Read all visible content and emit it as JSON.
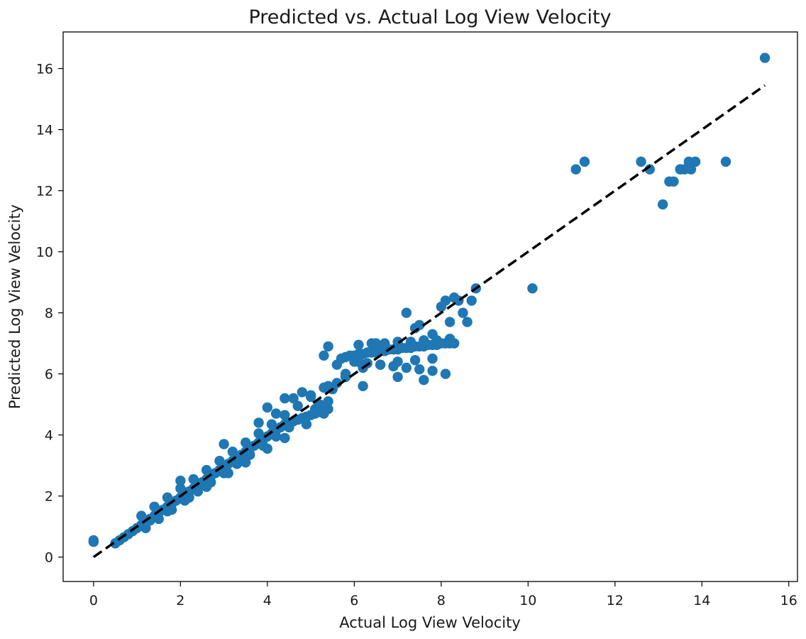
{
  "chart_data": {
    "type": "scatter",
    "title": "Predicted vs. Actual Log View Velocity",
    "xlabel": "Actual Log View Velocity",
    "ylabel": "Predicted Log View Velocity",
    "xlim": [
      -0.7,
      16.2
    ],
    "ylim": [
      -0.8,
      17.2
    ],
    "x_ticks": [
      "0",
      "2",
      "4",
      "6",
      "8",
      "10",
      "12",
      "14",
      "16"
    ],
    "y_ticks": [
      "0",
      "2",
      "4",
      "6",
      "8",
      "10",
      "12",
      "14",
      "16"
    ],
    "grid": false,
    "legend": "none",
    "point_color": "#1f77b4",
    "reference_line": {
      "style": "dashed",
      "color": "#000000",
      "x": [
        0,
        15.45
      ],
      "y": [
        0,
        15.45
      ]
    },
    "series": [
      {
        "x": [
          0.0,
          0.0,
          0.5,
          0.6,
          0.7,
          0.8,
          0.9,
          1.0,
          1.1,
          1.2,
          1.3,
          1.4,
          1.5,
          1.6,
          1.7,
          1.8,
          1.9,
          2.0,
          2.1,
          2.2,
          2.3,
          2.4,
          2.5,
          2.6,
          2.7,
          2.8,
          2.9,
          3.0,
          3.1,
          3.2,
          3.3,
          3.4,
          3.5,
          3.6,
          3.7,
          3.8,
          3.9,
          4.0,
          4.1,
          4.2,
          4.3,
          4.4,
          4.5,
          4.6,
          4.7,
          4.8,
          4.9,
          5.0,
          5.1,
          5.2,
          5.3,
          5.4,
          5.5,
          5.6,
          5.7,
          5.8,
          5.9,
          6.0,
          6.1,
          6.2,
          6.3,
          6.4,
          6.5,
          6.6,
          6.7,
          6.8,
          6.9,
          7.0,
          7.1,
          7.2,
          7.3,
          7.4,
          7.5,
          7.6,
          7.7,
          7.8,
          7.9,
          8.0,
          8.1,
          8.2,
          8.3,
          1.2,
          1.5,
          1.8,
          2.1,
          2.4,
          2.7,
          3.0,
          3.3,
          3.6,
          3.9,
          4.2,
          4.5,
          4.8,
          5.1,
          5.4,
          1.1,
          1.4,
          1.7,
          2.0,
          2.3,
          2.6,
          2.9,
          3.2,
          3.5,
          3.8,
          4.1,
          4.4,
          4.7,
          5.0,
          5.3,
          5.6,
          1.3,
          1.7,
          2.2,
          2.6,
          3.1,
          3.5,
          4.0,
          4.4,
          4.9,
          5.3,
          5.8,
          6.2,
          6.6,
          7.0,
          7.4,
          7.8,
          6.0,
          6.3,
          6.6,
          6.9,
          7.2,
          7.5,
          7.8,
          8.1,
          6.1,
          6.4,
          6.7,
          7.0,
          7.3,
          7.6,
          7.9,
          8.2,
          2.0,
          3.0,
          4.0,
          5.0,
          3.8,
          4.2,
          4.6,
          5.2,
          5.4,
          5.8,
          6.2,
          7.2,
          7.4,
          7.6,
          7.8,
          8.0,
          8.1,
          8.2,
          8.3,
          8.4,
          8.5,
          8.6,
          8.8,
          8.7,
          10.1,
          11.1,
          11.3,
          12.6,
          12.8,
          13.1,
          13.25,
          13.35,
          13.5,
          13.6,
          13.7,
          13.75,
          13.85,
          14.55,
          15.45,
          6.5,
          6.1,
          7.0,
          7.5,
          5.4,
          5.3,
          4.4,
          4.8
        ],
        "y": [
          0.55,
          0.5,
          0.45,
          0.55,
          0.65,
          0.75,
          0.85,
          0.95,
          1.05,
          1.15,
          1.25,
          1.35,
          1.45,
          1.55,
          1.65,
          1.75,
          1.85,
          1.95,
          2.05,
          2.15,
          2.25,
          2.35,
          2.45,
          2.55,
          2.65,
          2.75,
          2.85,
          2.95,
          3.05,
          3.15,
          3.25,
          3.35,
          3.45,
          3.55,
          3.65,
          3.75,
          3.85,
          3.95,
          4.05,
          4.15,
          4.25,
          4.35,
          4.4,
          4.45,
          4.5,
          4.55,
          4.6,
          4.65,
          4.7,
          4.75,
          4.8,
          4.85,
          5.5,
          6.3,
          6.5,
          6.55,
          6.6,
          6.6,
          6.65,
          6.65,
          6.7,
          6.7,
          6.7,
          6.75,
          6.75,
          6.8,
          6.8,
          6.8,
          6.85,
          6.85,
          6.85,
          6.9,
          6.9,
          6.9,
          6.95,
          6.95,
          6.95,
          7.0,
          7.0,
          7.0,
          7.0,
          0.95,
          1.25,
          1.55,
          1.85,
          2.15,
          2.45,
          2.75,
          3.05,
          3.35,
          3.65,
          3.95,
          4.25,
          4.55,
          4.85,
          5.1,
          1.35,
          1.65,
          1.95,
          2.25,
          2.55,
          2.85,
          3.15,
          3.45,
          3.75,
          4.05,
          4.35,
          4.65,
          4.95,
          5.25,
          5.55,
          5.7,
          1.2,
          1.5,
          1.95,
          2.3,
          2.75,
          3.1,
          3.55,
          3.9,
          4.35,
          4.7,
          6.0,
          6.2,
          6.3,
          6.4,
          6.45,
          6.5,
          6.4,
          6.35,
          6.3,
          6.25,
          6.2,
          6.15,
          6.1,
          6.0,
          6.95,
          7.0,
          7.0,
          7.05,
          7.05,
          7.1,
          7.1,
          7.15,
          2.5,
          3.7,
          4.9,
          5.3,
          4.4,
          4.7,
          5.2,
          5.0,
          5.6,
          5.9,
          5.6,
          8.0,
          7.5,
          5.8,
          7.3,
          8.2,
          8.4,
          7.7,
          8.5,
          8.4,
          8.0,
          7.7,
          8.8,
          8.4,
          8.8,
          12.7,
          12.95,
          12.95,
          12.7,
          11.55,
          12.3,
          12.3,
          12.7,
          12.7,
          12.95,
          12.7,
          12.95,
          12.95,
          16.35,
          7.0,
          6.4,
          5.9,
          7.6,
          6.9,
          6.6,
          5.2,
          5.4
        ]
      }
    ]
  }
}
